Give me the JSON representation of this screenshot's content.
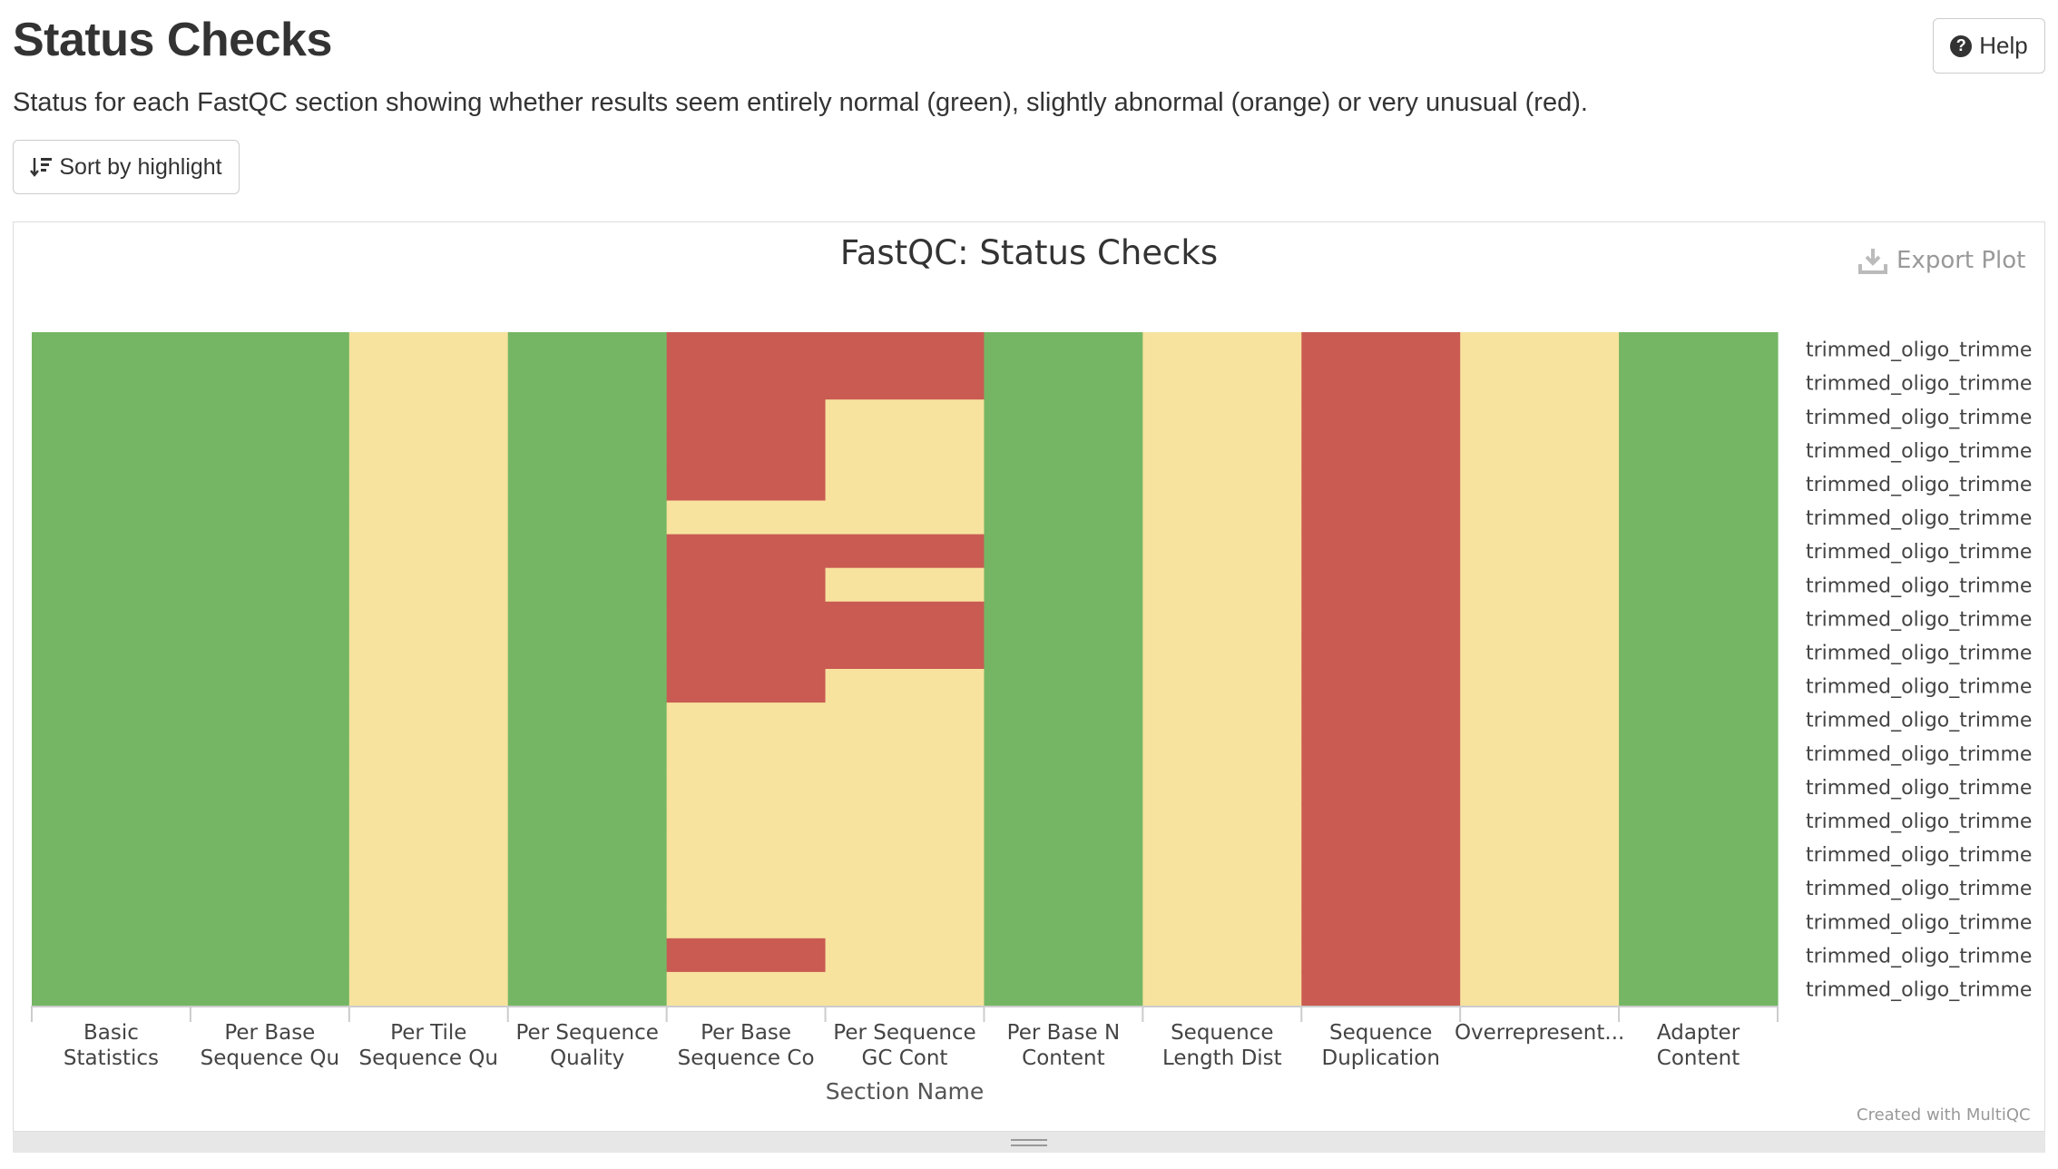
{
  "header": {
    "title": "Status Checks",
    "help_label": "Help",
    "description": "Status for each FastQC section showing whether results seem entirely normal (green), slightly abnormal (orange) or very unusual (red).",
    "sort_label": "Sort by highlight"
  },
  "plot": {
    "export_label": "Export Plot",
    "credit": "Created with MultiQC"
  },
  "colors": {
    "pass": "#75b664",
    "warn": "#f7e39e",
    "fail": "#c95b53"
  },
  "icons": [
    "question-circle-icon",
    "sort-amount-icon",
    "download-icon",
    "resize-grip-icon"
  ],
  "chart_data": {
    "type": "heatmap",
    "title": "FastQC: Status Checks",
    "xlabel": "Section Name",
    "x_categories": [
      [
        "Basic",
        "Statistics"
      ],
      [
        "Per Base",
        "Sequence Qu"
      ],
      [
        "Per Tile",
        "Sequence Qu"
      ],
      [
        "Per Sequence",
        "Quality"
      ],
      [
        "Per Base",
        "Sequence Co"
      ],
      [
        "Per Sequence",
        "GC Cont"
      ],
      [
        "Per Base N",
        "Content"
      ],
      [
        "Sequence",
        "Length Dist"
      ],
      [
        "Sequence",
        "Duplication"
      ],
      [
        "Overrepresent..."
      ],
      [
        "Adapter",
        "Content"
      ]
    ],
    "y_categories": [
      "trimmed_oligo_trimme",
      "trimmed_oligo_trimme",
      "trimmed_oligo_trimme",
      "trimmed_oligo_trimme",
      "trimmed_oligo_trimme",
      "trimmed_oligo_trimme",
      "trimmed_oligo_trimme",
      "trimmed_oligo_trimme",
      "trimmed_oligo_trimme",
      "trimmed_oligo_trimme",
      "trimmed_oligo_trimme",
      "trimmed_oligo_trimme",
      "trimmed_oligo_trimme",
      "trimmed_oligo_trimme",
      "trimmed_oligo_trimme",
      "trimmed_oligo_trimme",
      "trimmed_oligo_trimme",
      "trimmed_oligo_trimme",
      "trimmed_oligo_trimme",
      "trimmed_oligo_trimme"
    ],
    "status_legend": {
      "pass": "green",
      "warn": "orange",
      "fail": "red"
    },
    "columns": [
      [
        "pass",
        "pass",
        "pass",
        "pass",
        "pass",
        "pass",
        "pass",
        "pass",
        "pass",
        "pass",
        "pass",
        "pass",
        "pass",
        "pass",
        "pass",
        "pass",
        "pass",
        "pass",
        "pass",
        "pass"
      ],
      [
        "pass",
        "pass",
        "pass",
        "pass",
        "pass",
        "pass",
        "pass",
        "pass",
        "pass",
        "pass",
        "pass",
        "pass",
        "pass",
        "pass",
        "pass",
        "pass",
        "pass",
        "pass",
        "pass",
        "pass"
      ],
      [
        "warn",
        "warn",
        "warn",
        "warn",
        "warn",
        "warn",
        "warn",
        "warn",
        "warn",
        "warn",
        "warn",
        "warn",
        "warn",
        "warn",
        "warn",
        "warn",
        "warn",
        "warn",
        "warn",
        "warn"
      ],
      [
        "pass",
        "pass",
        "pass",
        "pass",
        "pass",
        "pass",
        "pass",
        "pass",
        "pass",
        "pass",
        "pass",
        "pass",
        "pass",
        "pass",
        "pass",
        "pass",
        "pass",
        "pass",
        "pass",
        "pass"
      ],
      [
        "fail",
        "fail",
        "fail",
        "fail",
        "fail",
        "warn",
        "fail",
        "fail",
        "fail",
        "fail",
        "fail",
        "warn",
        "warn",
        "warn",
        "warn",
        "warn",
        "warn",
        "warn",
        "fail",
        "warn"
      ],
      [
        "fail",
        "fail",
        "warn",
        "warn",
        "warn",
        "warn",
        "fail",
        "warn",
        "fail",
        "fail",
        "warn",
        "warn",
        "warn",
        "warn",
        "warn",
        "warn",
        "warn",
        "warn",
        "warn",
        "warn"
      ],
      [
        "pass",
        "pass",
        "pass",
        "pass",
        "pass",
        "pass",
        "pass",
        "pass",
        "pass",
        "pass",
        "pass",
        "pass",
        "pass",
        "pass",
        "pass",
        "pass",
        "pass",
        "pass",
        "pass",
        "pass"
      ],
      [
        "warn",
        "warn",
        "warn",
        "warn",
        "warn",
        "warn",
        "warn",
        "warn",
        "warn",
        "warn",
        "warn",
        "warn",
        "warn",
        "warn",
        "warn",
        "warn",
        "warn",
        "warn",
        "warn",
        "warn"
      ],
      [
        "fail",
        "fail",
        "fail",
        "fail",
        "fail",
        "fail",
        "fail",
        "fail",
        "fail",
        "fail",
        "fail",
        "fail",
        "fail",
        "fail",
        "fail",
        "fail",
        "fail",
        "fail",
        "fail",
        "fail"
      ],
      [
        "warn",
        "warn",
        "warn",
        "warn",
        "warn",
        "warn",
        "warn",
        "warn",
        "warn",
        "warn",
        "warn",
        "warn",
        "warn",
        "warn",
        "warn",
        "warn",
        "warn",
        "warn",
        "warn",
        "warn"
      ],
      [
        "pass",
        "pass",
        "pass",
        "pass",
        "pass",
        "pass",
        "pass",
        "pass",
        "pass",
        "pass",
        "pass",
        "pass",
        "pass",
        "pass",
        "pass",
        "pass",
        "pass",
        "pass",
        "pass",
        "pass"
      ]
    ]
  }
}
